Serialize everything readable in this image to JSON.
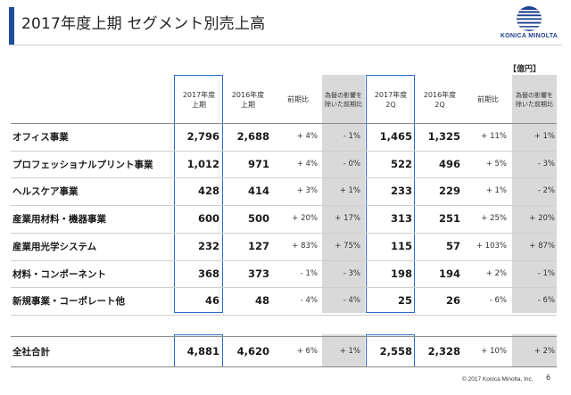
{
  "title": "2017年度上期 セグメント別売上高",
  "logo_text": "KONICA MINOLTA",
  "unit": "【億円】",
  "headers": {
    "h2017_1": "2017年度",
    "h2017_2": "上期",
    "h2016_1": "2016年度",
    "h2016_2": "上期",
    "yoy": "前期比",
    "fx_1": "為替の影響を",
    "fx_2": "除いた前期比",
    "q2017_1": "2017年度",
    "q2017_2": "2Q",
    "q2016_1": "2016年度",
    "q2016_2": "2Q",
    "qyoy": "前期比",
    "qfx_1": "為替の影響を",
    "qfx_2": "除いた前期比"
  },
  "rows": [
    {
      "label": "オフィス事業",
      "h2017": "2,796",
      "h2016": "2,688",
      "yoy": "+ 4%",
      "fx": "- 1%",
      "q2017": "1,465",
      "q2016": "1,325",
      "qyoy": "+ 11%",
      "qfx": "+ 1%"
    },
    {
      "label": "プロフェッショナルプリント事業",
      "h2017": "1,012",
      "h2016": "971",
      "yoy": "+ 4%",
      "fx": "- 0%",
      "q2017": "522",
      "q2016": "496",
      "qyoy": "+ 5%",
      "qfx": "- 3%"
    },
    {
      "label": "ヘルスケア事業",
      "h2017": "428",
      "h2016": "414",
      "yoy": "+ 3%",
      "fx": "+ 1%",
      "q2017": "233",
      "q2016": "229",
      "qyoy": "+ 1%",
      "qfx": "- 2%"
    },
    {
      "label": "産業用材料・機器事業",
      "h2017": "600",
      "h2016": "500",
      "yoy": "+ 20%",
      "fx": "+ 17%",
      "q2017": "313",
      "q2016": "251",
      "qyoy": "+ 25%",
      "qfx": "+ 20%"
    },
    {
      "label": "産業用光学システム",
      "h2017": "232",
      "h2016": "127",
      "yoy": "+ 83%",
      "fx": "+ 75%",
      "q2017": "115",
      "q2016": "57",
      "qyoy": "+ 103%",
      "qfx": "+ 87%"
    },
    {
      "label": "材料・コンポーネント",
      "h2017": "368",
      "h2016": "373",
      "yoy": "- 1%",
      "fx": "- 3%",
      "q2017": "198",
      "q2016": "194",
      "qyoy": "+ 2%",
      "qfx": "- 1%"
    },
    {
      "label": "新規事業・コーポレート他",
      "h2017": "46",
      "h2016": "48",
      "yoy": "- 4%",
      "fx": "- 4%",
      "q2017": "25",
      "q2016": "26",
      "qyoy": "- 6%",
      "qfx": "- 6%"
    }
  ],
  "total": {
    "label": "全社合計",
    "h2017": "4,881",
    "h2016": "4,620",
    "yoy": "+ 6%",
    "fx": "+ 1%",
    "q2017": "2,558",
    "q2016": "2,328",
    "qyoy": "+ 10%",
    "qfx": "+ 2%"
  },
  "footer": "© 2017 Konica Minolta, Inc.",
  "page_number": "6",
  "colors": {
    "accent": "#1f4e9c",
    "highlight_box": "#2b6cc4",
    "shade": "#d9d9d9"
  }
}
